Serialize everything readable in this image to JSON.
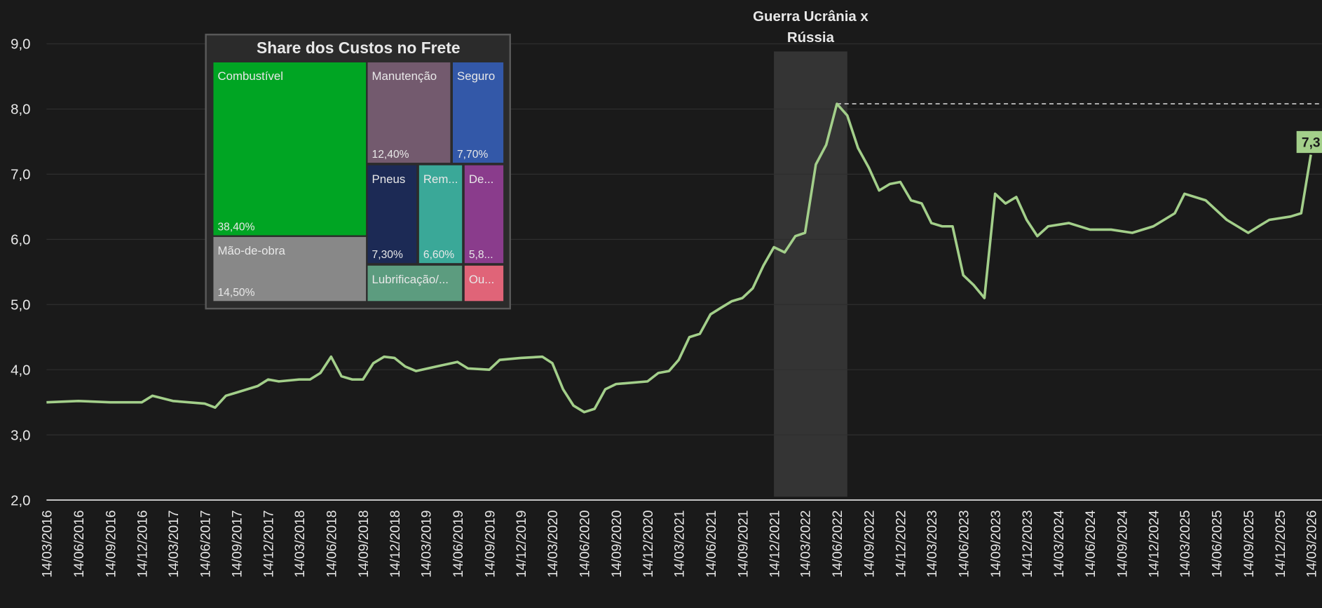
{
  "chart_data": [
    {
      "type": "line",
      "x": [
        "14/03/2016",
        "14/06/2016",
        "14/09/2016",
        "14/12/2016",
        "14/01/2017",
        "14/03/2017",
        "14/06/2017",
        "14/07/2017",
        "14/08/2017",
        "14/09/2017",
        "14/11/2017",
        "14/12/2017",
        "14/01/2018",
        "14/03/2018",
        "14/04/2018",
        "14/05/2018",
        "14/06/2018",
        "14/07/2018",
        "14/08/2018",
        "14/09/2018",
        "14/10/2018",
        "14/11/2018",
        "14/12/2018",
        "14/01/2019",
        "14/02/2019",
        "14/04/2019",
        "14/06/2019",
        "14/07/2019",
        "14/09/2019",
        "14/10/2019",
        "14/12/2019",
        "14/02/2020",
        "14/03/2020",
        "14/04/2020",
        "14/05/2020",
        "14/06/2020",
        "14/07/2020",
        "14/08/2020",
        "14/09/2020",
        "14/12/2020",
        "14/01/2021",
        "14/02/2021",
        "14/03/2021",
        "14/04/2021",
        "14/05/2021",
        "14/06/2021",
        "14/07/2021",
        "14/08/2021",
        "14/09/2021",
        "14/10/2021",
        "14/11/2021",
        "14/12/2021",
        "14/01/2022",
        "14/02/2022",
        "14/03/2022",
        "14/04/2022",
        "14/05/2022",
        "14/06/2022",
        "14/07/2022",
        "14/08/2022",
        "14/09/2022",
        "14/10/2022",
        "14/11/2022",
        "14/12/2022",
        "14/01/2023",
        "14/02/2023",
        "14/03/2023",
        "14/04/2023",
        "14/05/2023",
        "14/06/2023",
        "14/07/2023",
        "14/08/2023",
        "14/09/2023",
        "14/10/2023",
        "14/11/2023",
        "14/12/2023",
        "14/01/2024",
        "14/02/2024",
        "14/04/2024",
        "14/06/2024",
        "14/08/2024",
        "14/10/2024",
        "14/12/2024",
        "14/01/2025",
        "14/02/2025",
        "14/03/2025",
        "14/05/2025",
        "14/07/2025",
        "14/09/2025",
        "14/10/2025",
        "14/11/2025",
        "14/01/2026",
        "14/02/2026",
        "14/03/2026"
      ],
      "values": [
        3.5,
        3.52,
        3.5,
        3.5,
        3.6,
        3.52,
        3.48,
        3.42,
        3.6,
        3.65,
        3.75,
        3.85,
        3.82,
        3.85,
        3.85,
        3.95,
        4.2,
        3.9,
        3.85,
        3.85,
        4.1,
        4.2,
        4.18,
        4.05,
        3.98,
        4.05,
        4.12,
        4.02,
        4.0,
        4.15,
        4.18,
        4.2,
        4.1,
        3.7,
        3.45,
        3.35,
        3.4,
        3.7,
        3.78,
        3.82,
        3.95,
        3.98,
        4.15,
        4.5,
        4.55,
        4.85,
        4.95,
        5.05,
        5.1,
        5.25,
        5.6,
        5.88,
        5.8,
        6.05,
        6.1,
        7.15,
        7.45,
        8.08,
        7.9,
        7.4,
        7.1,
        6.75,
        6.85,
        6.88,
        6.6,
        6.55,
        6.25,
        6.2,
        6.2,
        5.45,
        5.3,
        5.1,
        6.7,
        6.55,
        6.65,
        6.3,
        6.05,
        6.2,
        6.25,
        6.15,
        6.15,
        6.1,
        6.2,
        6.3,
        6.4,
        6.7,
        6.6,
        6.3,
        6.1,
        6.2,
        6.3,
        6.35,
        6.4,
        7.3
      ],
      "value_labels": [
        null,
        null,
        null,
        null,
        null,
        null,
        null,
        null,
        null,
        null,
        null,
        null,
        null,
        null,
        null,
        null,
        null,
        null,
        null,
        null,
        null,
        null,
        null,
        null,
        null,
        null,
        null,
        null,
        null,
        null,
        null,
        null,
        null,
        null,
        null,
        null,
        null,
        null,
        null,
        null,
        null,
        null,
        null,
        null,
        null,
        null,
        null,
        null,
        null,
        null,
        null,
        null,
        null,
        null,
        null,
        null,
        null,
        null,
        null,
        null,
        null,
        null,
        null,
        null,
        null,
        null,
        null,
        null,
        null,
        null,
        null,
        null,
        null,
        null,
        null,
        null,
        null,
        null,
        null,
        null,
        null,
        null,
        null,
        null,
        null,
        null,
        null,
        null,
        null,
        null,
        null,
        null,
        null,
        "7,3"
      ],
      "color": "#a3cf8a",
      "xlim": [
        "14/03/2016",
        "14/03/2026"
      ],
      "xticks": [
        "14/03/2016",
        "14/06/2016",
        "14/09/2016",
        "14/12/2016",
        "14/03/2017",
        "14/06/2017",
        "14/09/2017",
        "14/12/2017",
        "14/03/2018",
        "14/06/2018",
        "14/09/2018",
        "14/12/2018",
        "14/03/2019",
        "14/06/2019",
        "14/09/2019",
        "14/12/2019",
        "14/03/2020",
        "14/06/2020",
        "14/09/2020",
        "14/12/2020",
        "14/03/2021",
        "14/06/2021",
        "14/09/2021",
        "14/12/2021",
        "14/03/2022",
        "14/06/2022",
        "14/09/2022",
        "14/12/2022",
        "14/03/2023",
        "14/06/2023",
        "14/09/2023",
        "14/12/2023",
        "14/03/2024",
        "14/06/2024",
        "14/09/2024",
        "14/12/2024",
        "14/03/2025",
        "14/06/2025",
        "14/09/2025",
        "14/12/2025",
        "14/03/2026"
      ],
      "ylim": [
        2,
        9
      ],
      "yticks": [
        {
          "value": 2,
          "label": "2,0"
        },
        {
          "value": 3,
          "label": "3,0"
        },
        {
          "value": 4,
          "label": "4,0"
        },
        {
          "value": 5,
          "label": "5,0"
        },
        {
          "value": 6,
          "label": "6,0"
        },
        {
          "value": 7,
          "label": "7,0"
        },
        {
          "value": 8,
          "label": "8,0"
        },
        {
          "value": 9,
          "label": "9,0"
        }
      ],
      "grid": true,
      "annotation": {
        "lines": [
          "Guerra Ucrânia x",
          "Rússia"
        ],
        "span": [
          "14/12/2021",
          "14/07/2022"
        ]
      }
    },
    {
      "type": "treemap",
      "title": "Share dos Custos no Frete",
      "categories": [
        "Combustível",
        "Mão-de-obra",
        "Manutenção",
        "Seguro",
        "Pneus",
        "Rem...",
        "De...",
        "Lubrificação/...",
        "Ou..."
      ],
      "values": [
        38.4,
        14.5,
        12.4,
        7.7,
        7.3,
        6.6,
        5.8,
        4.8,
        2.5
      ],
      "value_labels": [
        "38,40%",
        "14,50%",
        "12,40%",
        "7,70%",
        "7,30%",
        "6,60%",
        "5,8...",
        null,
        null
      ],
      "colors": [
        "#00a523",
        "#888888",
        "#735a6e",
        "#3358a8",
        "#1c2a55",
        "#3aa898",
        "#8a3c8c",
        "#5c9c7f",
        "#e06478"
      ]
    }
  ]
}
